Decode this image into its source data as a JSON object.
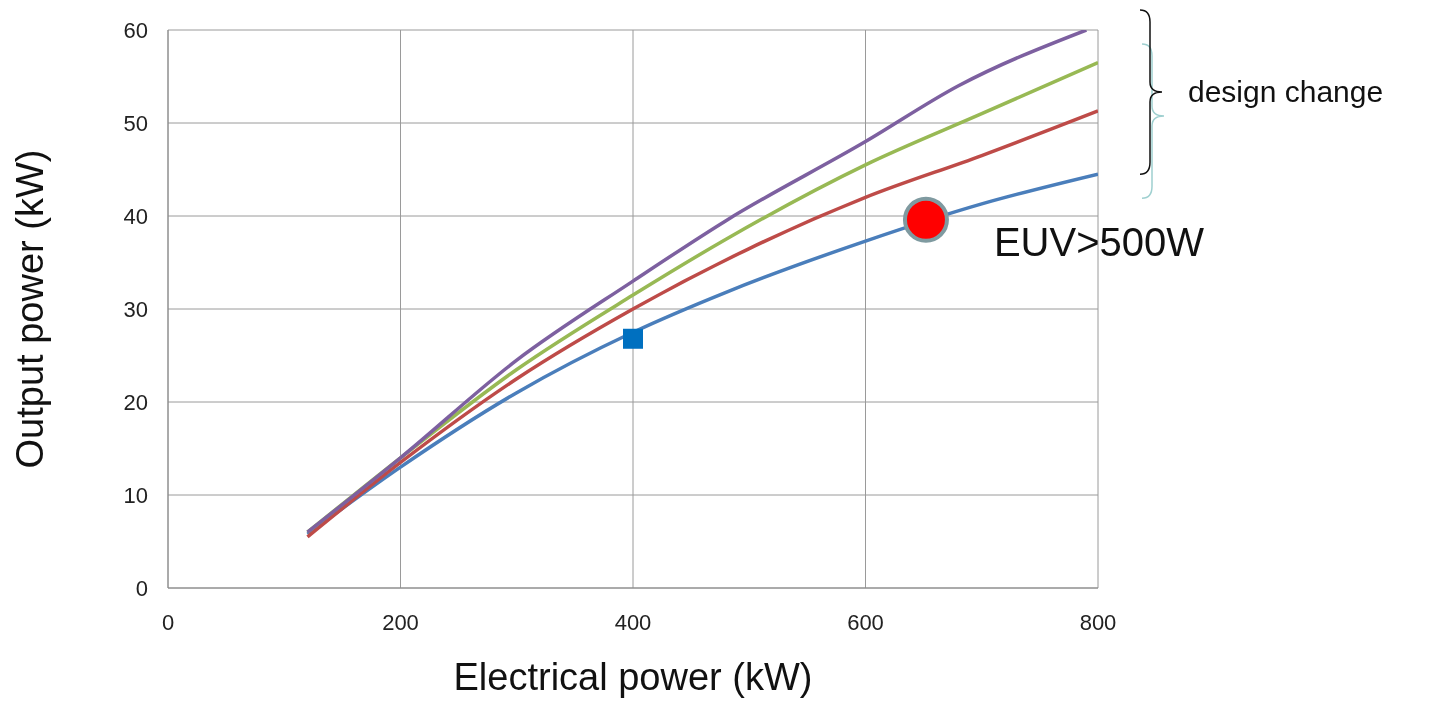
{
  "chart_data": {
    "type": "line",
    "xlabel": "Electrical power (kW)",
    "ylabel": "Output power (kW)",
    "xlim": [
      0,
      800
    ],
    "xticks": [
      0,
      200,
      400,
      600,
      800
    ],
    "ylim": [
      0,
      60
    ],
    "yticks": [
      0,
      10,
      20,
      30,
      40,
      50,
      60
    ],
    "grid": true,
    "marker": "none",
    "line_style": "solid",
    "series": [
      {
        "color": "#4a7ebb",
        "x": [
          120,
          200,
          300,
          400,
          480,
          600,
          700,
          800
        ],
        "values": [
          5.8,
          13,
          21,
          27.5,
          31.8,
          37.3,
          41.3,
          44.5
        ]
      },
      {
        "color": "#be4b48",
        "x": [
          120,
          200,
          300,
          400,
          500,
          600,
          700,
          800
        ],
        "values": [
          5.5,
          13.5,
          22.5,
          30,
          36.5,
          42,
          46.5,
          51.3
        ]
      },
      {
        "color": "#98b954",
        "x": [
          120,
          200,
          300,
          400,
          480,
          600,
          700,
          800
        ],
        "values": [
          6,
          14,
          23.5,
          31.5,
          37.5,
          45.5,
          51,
          56.5
        ]
      },
      {
        "color": "#7d60a0",
        "x": [
          120,
          200,
          300,
          400,
          480,
          600,
          680,
          790
        ],
        "values": [
          6,
          14,
          24.5,
          33,
          39.5,
          48,
          54,
          60
        ]
      },
      {
        "type": "scatter",
        "marker": "square",
        "color": "#0070c0",
        "x": [
          400
        ],
        "values": [
          26.8
        ]
      },
      {
        "type": "scatter",
        "marker": "circle",
        "color": "#ff0000",
        "x": [
          652
        ],
        "values": [
          39.6
        ]
      }
    ],
    "annotations": [
      {
        "text": "EUV>500W",
        "x": 652,
        "y": 39.6
      },
      "design change"
    ]
  }
}
